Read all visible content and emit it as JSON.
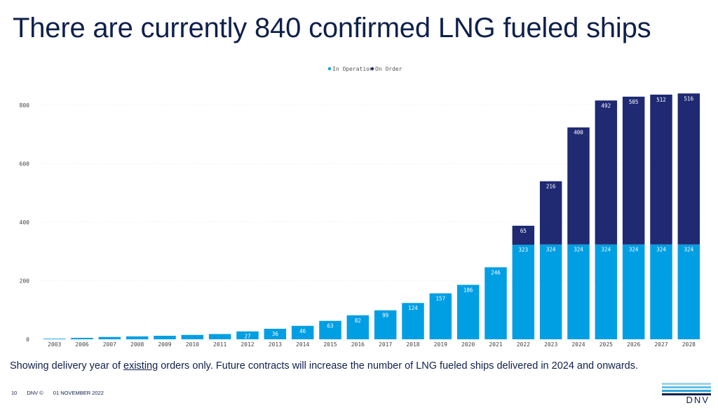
{
  "slide": {
    "title": "There are currently 840 confirmed LNG fueled ships",
    "note_before": "Showing delivery year of ",
    "note_underlined": "existing",
    "note_after": " orders only. Future contracts will increase the number of LNG fueled ships delivered in 2024 and onwards.",
    "footer": {
      "page_number": "10",
      "brand": "DNV ©",
      "date": "01 NOVEMBER 2022"
    },
    "logo_text": "DNV"
  },
  "colors": {
    "in_operation": "#009fe3",
    "on_order": "#1f2a73",
    "grid": "#ececec",
    "title": "#0f204b"
  },
  "chart_data": {
    "type": "bar",
    "stacked": true,
    "title": "",
    "xlabel": "",
    "ylabel": "",
    "ylim": [
      0,
      840
    ],
    "yticks": [
      0,
      200,
      400,
      600,
      800
    ],
    "legend_position": "top-center",
    "grid": true,
    "categories": [
      "2003",
      "2006",
      "2007",
      "2008",
      "2009",
      "2010",
      "2011",
      "2012",
      "2013",
      "2014",
      "2015",
      "2016",
      "2017",
      "2018",
      "2019",
      "2020",
      "2021",
      "2022",
      "2023",
      "2024",
      "2025",
      "2026",
      "2027",
      "2028"
    ],
    "series": [
      {
        "name": "In Operation",
        "color": "#009fe3",
        "values": [
          2,
          5,
          8,
          10,
          12,
          15,
          18,
          27,
          36,
          46,
          63,
          82,
          99,
          124,
          157,
          186,
          246,
          323,
          324,
          324,
          324,
          324,
          324,
          324
        ],
        "labels": [
          "",
          "",
          "",
          "",
          "",
          "",
          "",
          "27",
          "36",
          "46",
          "63",
          "82",
          "99",
          "124",
          "157",
          "186",
          "246",
          "323",
          "324",
          "324",
          "324",
          "324",
          "324",
          "324"
        ]
      },
      {
        "name": "On Order",
        "color": "#1f2a73",
        "values": [
          0,
          0,
          0,
          0,
          0,
          0,
          0,
          0,
          0,
          0,
          0,
          0,
          0,
          0,
          0,
          0,
          0,
          65,
          216,
          400,
          492,
          505,
          512,
          516
        ],
        "labels": [
          "",
          "",
          "",
          "",
          "",
          "",
          "",
          "",
          "",
          "",
          "",
          "",
          "",
          "",
          "",
          "",
          "",
          "65",
          "216",
          "400",
          "492",
          "505",
          "512",
          "516"
        ]
      }
    ]
  }
}
